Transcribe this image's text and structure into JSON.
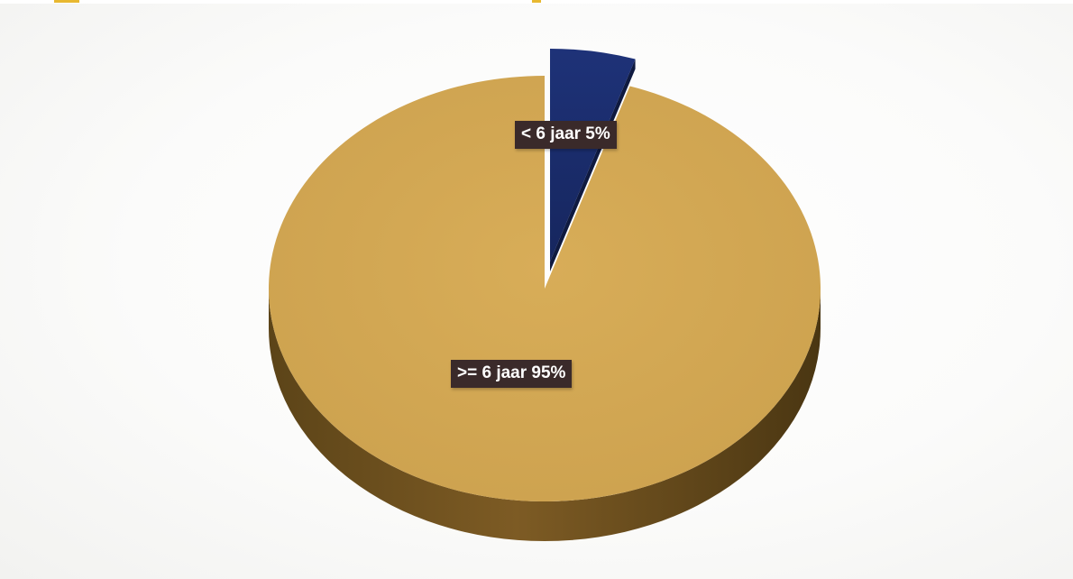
{
  "chart_data": {
    "type": "pie",
    "title": "",
    "slices": [
      {
        "label": "< 6 jaar",
        "value": 5,
        "display": "< 6 jaar 5%",
        "color": "#1b2d6b",
        "side_color": "#0f1a40",
        "exploded": true
      },
      {
        "label": ">= 6 jaar",
        "value": 95,
        "display": ">= 6 jaar 95%",
        "color": "#d2a854",
        "side_color": "#7a5a22",
        "exploded": false
      }
    ],
    "style": "3d"
  }
}
